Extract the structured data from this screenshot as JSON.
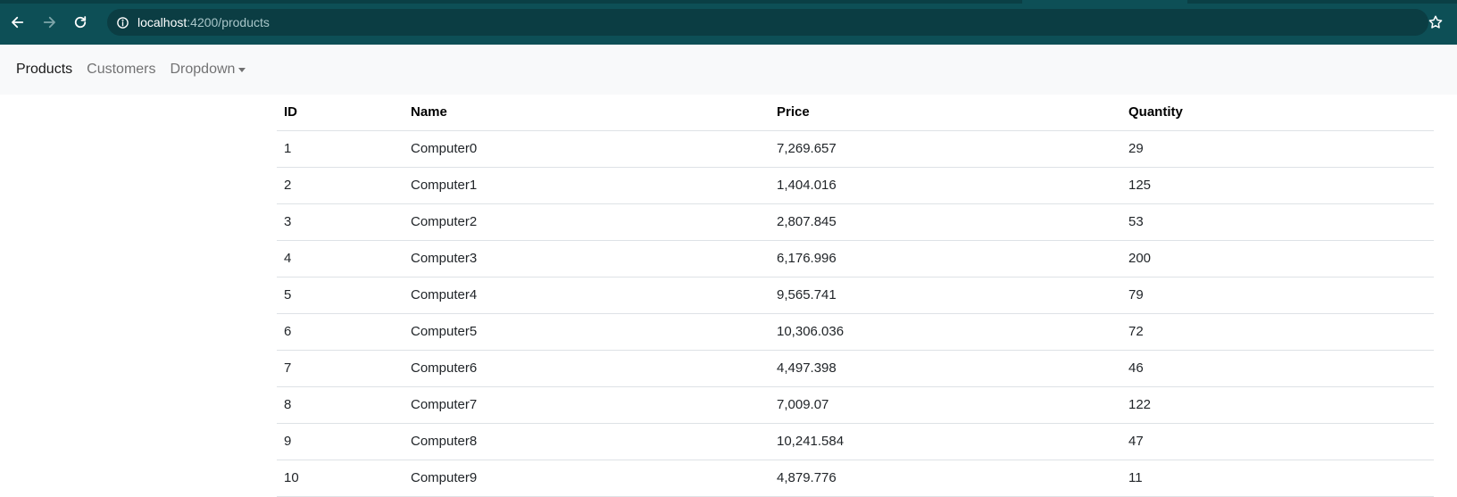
{
  "browser": {
    "url_host": "localhost",
    "url_path": ":4200/products"
  },
  "navbar": {
    "items": [
      {
        "label": "Products"
      },
      {
        "label": "Customers"
      },
      {
        "label": "Dropdown"
      }
    ]
  },
  "table": {
    "headers": [
      "ID",
      "Name",
      "Price",
      "Quantity"
    ],
    "rows": [
      [
        "1",
        "Computer0",
        "7,269.657",
        "29"
      ],
      [
        "2",
        "Computer1",
        "1,404.016",
        "125"
      ],
      [
        "3",
        "Computer2",
        "2,807.845",
        "53"
      ],
      [
        "4",
        "Computer3",
        "6,176.996",
        "200"
      ],
      [
        "5",
        "Computer4",
        "9,565.741",
        "79"
      ],
      [
        "6",
        "Computer5",
        "10,306.036",
        "72"
      ],
      [
        "7",
        "Computer6",
        "4,497.398",
        "46"
      ],
      [
        "8",
        "Computer7",
        "7,009.07",
        "122"
      ],
      [
        "9",
        "Computer8",
        "10,241.584",
        "47"
      ],
      [
        "10",
        "Computer9",
        "4,879.776",
        "11"
      ]
    ]
  },
  "icons": {
    "back": "arrow-left-icon",
    "forward": "arrow-right-icon",
    "reload": "reload-icon",
    "info": "info-icon",
    "bookmark": "star-icon"
  },
  "colors": {
    "browser_chrome": "#0d4f56",
    "navbar_bg": "#f8f9fa"
  }
}
